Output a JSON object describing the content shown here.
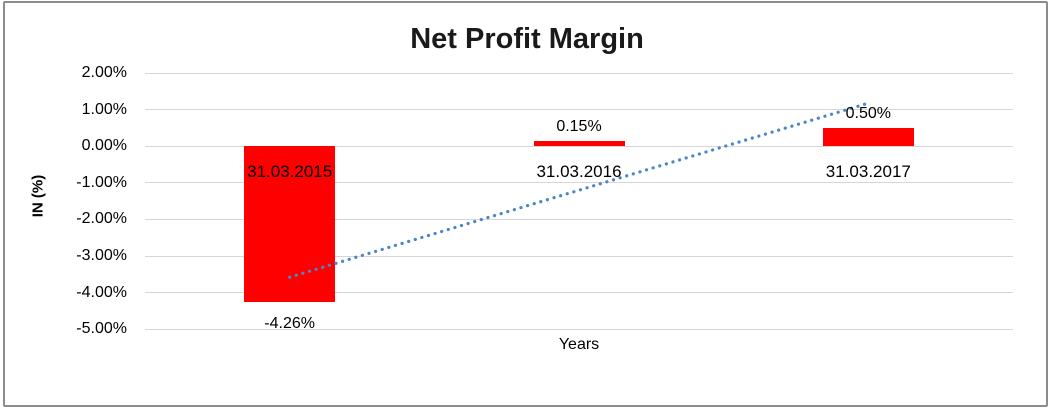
{
  "chart_data": {
    "type": "bar",
    "title": "Net Profit Margin",
    "xlabel": "Years",
    "ylabel": "IN (%)",
    "categories": [
      "31.03.2015",
      "31.03.2016",
      "31.03.2017"
    ],
    "values": [
      -4.26,
      0.15,
      0.5
    ],
    "data_labels": [
      "-4.26%",
      "0.15%",
      "0.50%"
    ],
    "unit": "percent",
    "ylim": [
      -5,
      2
    ],
    "ytick_step": 1,
    "yticks": [
      2,
      1,
      0,
      -1,
      -2,
      -3,
      -4,
      -5
    ],
    "ytick_labels": [
      "2.00%",
      "1.00%",
      "0.00%",
      "-1.00%",
      "-2.00%",
      "-3.00%",
      "-4.00%",
      "-5.00%"
    ],
    "grid": true,
    "legend": "none",
    "bar_color": "#ff0000",
    "gridline_color": "#d6d6d6",
    "trendline": {
      "type": "linear",
      "style": "dotted",
      "color": "#4a86c8",
      "start_value": -3.58,
      "end_value": 1.18
    }
  }
}
